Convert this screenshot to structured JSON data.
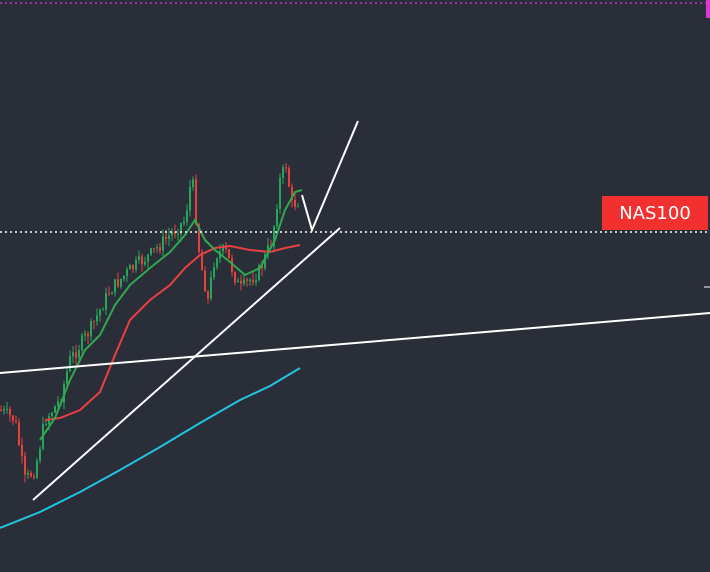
{
  "price_label": {
    "symbol": "NAS100"
  }
}
